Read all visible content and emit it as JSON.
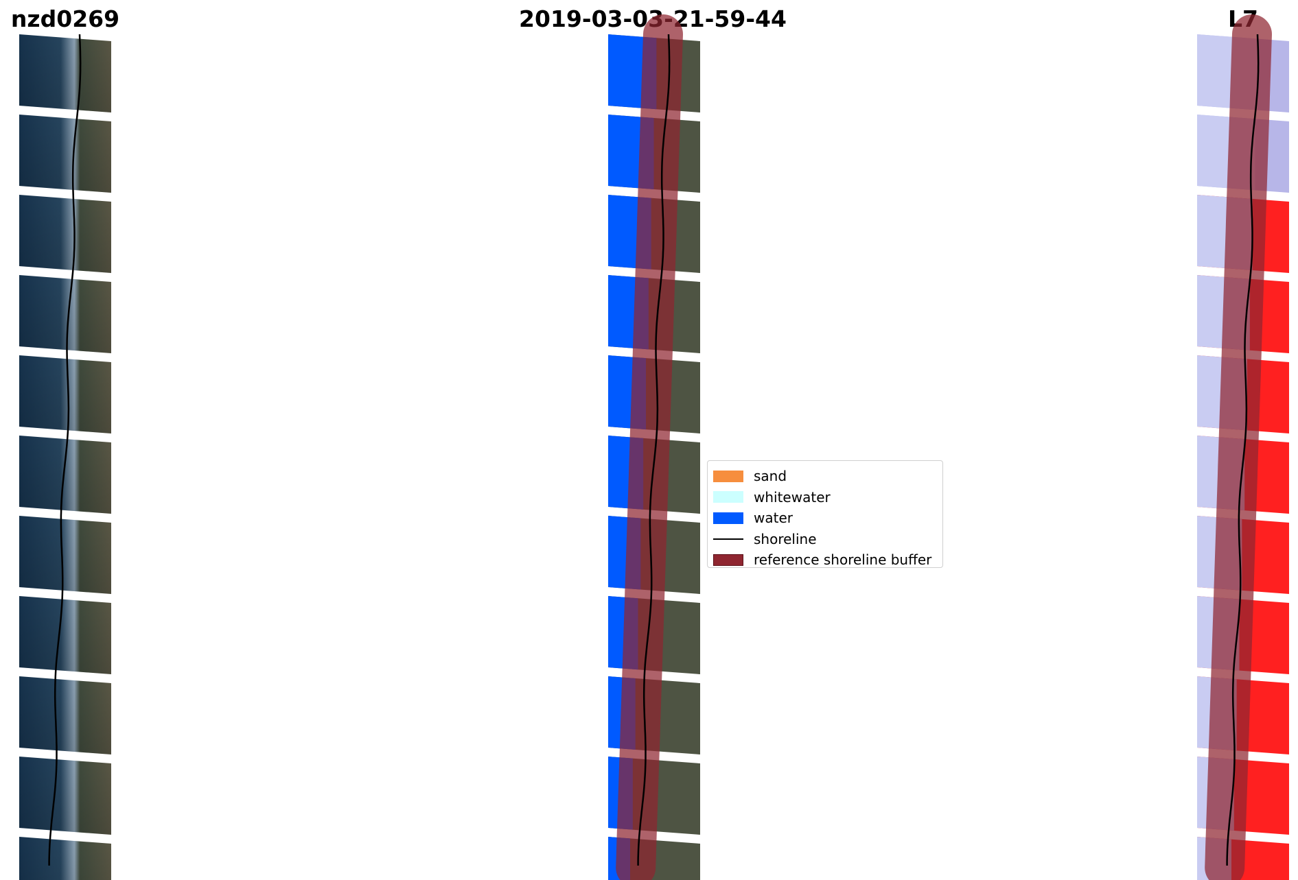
{
  "titles": {
    "left": "nzd0269",
    "center": "2019-03-03-21-59-44",
    "right": "L7"
  },
  "panels": [
    {
      "name": "rgb-image",
      "content": "satellite RGB image of coastline with detected shoreline"
    },
    {
      "name": "classified-image",
      "content": "classified image with reference shoreline buffer"
    },
    {
      "name": "mndwi-image",
      "content": "MNDWI index image with reference shoreline buffer"
    }
  ],
  "legend": {
    "items": [
      {
        "label": "sand",
        "color": "#f68e3e",
        "kind": "patch"
      },
      {
        "label": "whitewater",
        "color": "#ccffff",
        "kind": "patch"
      },
      {
        "label": "water",
        "color": "#005aff",
        "kind": "patch"
      },
      {
        "label": "shoreline",
        "color": "#000000",
        "kind": "line"
      },
      {
        "label": "reference shoreline buffer",
        "color": "#8f2630",
        "kind": "patch"
      }
    ]
  },
  "colors": {
    "rgb_sea": "#1f3b56",
    "rgb_land": "#4d5240",
    "class_water": "#005aff",
    "buffer": "#8f2630",
    "buffer_overlay_water": "#5a2a9a",
    "mndwi_water": "#c9ccf2",
    "mndwi_land": "#ff2020"
  }
}
